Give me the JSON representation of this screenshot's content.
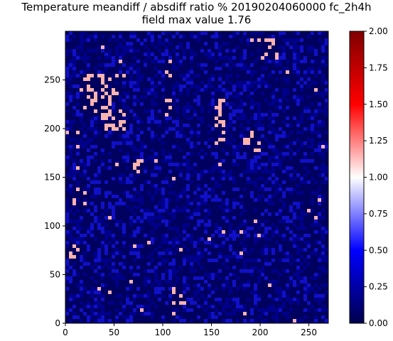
{
  "chart_data": {
    "type": "heatmap",
    "title": "Temperature meandiff / absdiff ratio % 20190204060000 fc_2h4h",
    "subtitle": "field max value 1.76",
    "xlabel": "",
    "ylabel": "",
    "xlim": [
      0,
      270
    ],
    "ylim": [
      0,
      300
    ],
    "x_ticks": [
      "0",
      "50",
      "100",
      "150",
      "200",
      "250"
    ],
    "y_ticks": [
      "0",
      "50",
      "100",
      "150",
      "200",
      "250"
    ],
    "grid": false,
    "colorbar": {
      "colormap": "seismic",
      "range": [
        0.0,
        2.0
      ],
      "ticks": [
        "0.00",
        "0.25",
        "0.50",
        "0.75",
        "1.00",
        "1.25",
        "1.50",
        "1.75",
        "2.00"
      ]
    },
    "field_max": 1.76,
    "field_description_colors": {
      "background": "#000063",
      "low": "#00008a",
      "mid": "#1010c8",
      "high": "#fbb4ae"
    }
  }
}
